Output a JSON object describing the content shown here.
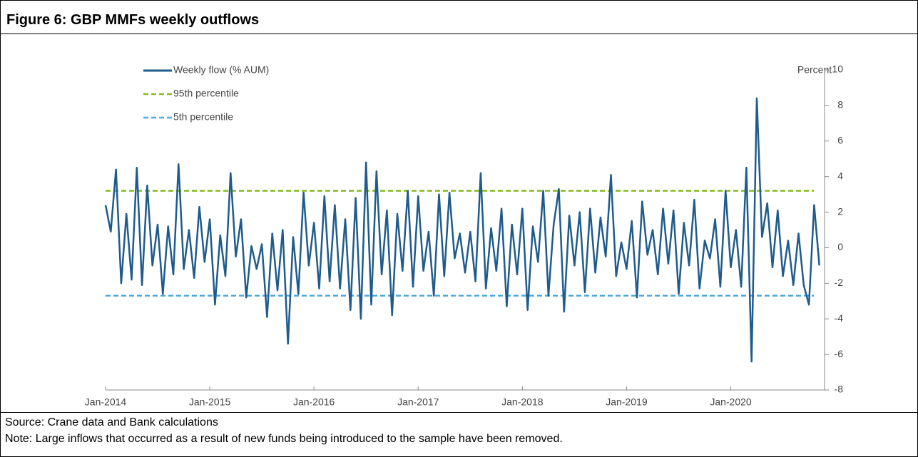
{
  "chart_data": {
    "type": "line",
    "title": "Figure 6: GBP MMFs weekly outflows",
    "y_label": "Percent",
    "source": "Source: Crane data and Bank calculations",
    "note": "Note: Large inflows that occurred as a result of new funds being introduced to the sample have been removed.",
    "xlim": [
      2014,
      2020.9
    ],
    "xticks": [
      {
        "value": 2014,
        "label": "Jan-2014"
      },
      {
        "value": 2015,
        "label": "Jan-2015"
      },
      {
        "value": 2016,
        "label": "Jan-2016"
      },
      {
        "value": 2017,
        "label": "Jan-2017"
      },
      {
        "value": 2018,
        "label": "Jan-2018"
      },
      {
        "value": 2019,
        "label": "Jan-2019"
      },
      {
        "value": 2020,
        "label": "Jan-2020"
      }
    ],
    "ylim": [
      -8,
      10
    ],
    "yticks": [
      -8,
      -6,
      -4,
      -2,
      0,
      2,
      4,
      6,
      8,
      10
    ],
    "x": [
      2014,
      2014.05,
      2014.1,
      2014.15,
      2014.2,
      2014.25,
      2014.3,
      2014.35,
      2014.4,
      2014.45,
      2014.5,
      2014.55,
      2014.6,
      2014.65,
      2014.7,
      2014.75,
      2014.8,
      2014.85,
      2014.9,
      2014.95,
      2015,
      2015.05,
      2015.1,
      2015.15,
      2015.2,
      2015.25,
      2015.3,
      2015.35,
      2015.4,
      2015.45,
      2015.5,
      2015.55,
      2015.6,
      2015.65,
      2015.7,
      2015.75,
      2015.8,
      2015.85,
      2015.9,
      2015.95,
      2016,
      2016.05,
      2016.1,
      2016.15,
      2016.2,
      2016.25,
      2016.3,
      2016.35,
      2016.4,
      2016.45,
      2016.5,
      2016.55,
      2016.6,
      2016.65,
      2016.7,
      2016.75,
      2016.8,
      2016.85,
      2016.9,
      2016.95,
      2017,
      2017.05,
      2017.1,
      2017.15,
      2017.2,
      2017.25,
      2017.3,
      2017.35,
      2017.4,
      2017.45,
      2017.5,
      2017.55,
      2017.6,
      2017.65,
      2017.7,
      2017.75,
      2017.8,
      2017.85,
      2017.9,
      2017.95,
      2018,
      2018.05,
      2018.1,
      2018.15,
      2018.2,
      2018.25,
      2018.3,
      2018.35,
      2018.4,
      2018.45,
      2018.5,
      2018.55,
      2018.6,
      2018.65,
      2018.7,
      2018.75,
      2018.8,
      2018.85,
      2018.9,
      2018.95,
      2019,
      2019.05,
      2019.1,
      2019.15,
      2019.2,
      2019.25,
      2019.3,
      2019.35,
      2019.4,
      2019.45,
      2019.5,
      2019.55,
      2019.6,
      2019.65,
      2019.7,
      2019.75,
      2019.8,
      2019.85,
      2019.9,
      2019.95,
      2020,
      2020.05,
      2020.1,
      2020.15,
      2020.2,
      2020.25,
      2020.3,
      2020.35,
      2020.4,
      2020.45,
      2020.5,
      2020.55,
      2020.6,
      2020.65,
      2020.7,
      2020.75,
      2020.8,
      2020.85
    ],
    "series": [
      {
        "name": "Weekly flow (% AUM)",
        "color": "#1f5b8c",
        "values": [
          2.4,
          0.9,
          4.4,
          -2.0,
          1.9,
          -1.8,
          4.5,
          -2.1,
          3.5,
          -1.0,
          1.3,
          -2.6,
          1.2,
          -1.5,
          4.7,
          -1.2,
          1.0,
          -1.7,
          2.3,
          -0.8,
          1.6,
          -3.2,
          0.7,
          -1.6,
          4.2,
          -0.5,
          1.6,
          -2.8,
          0.1,
          -1.2,
          0.2,
          -3.9,
          0.8,
          -2.4,
          1.0,
          -5.4,
          0.6,
          -2.6,
          3.1,
          -1.0,
          1.4,
          -2.3,
          2.9,
          -1.9,
          2.4,
          -2.3,
          1.6,
          -3.5,
          2.8,
          -4.0,
          4.8,
          -3.2,
          4.3,
          -1.5,
          2.1,
          -3.8,
          1.9,
          -1.3,
          3.2,
          -2.2,
          2.9,
          -1.3,
          0.9,
          -2.7,
          3.0,
          -1.6,
          3.1,
          -0.6,
          0.8,
          -1.4,
          0.9,
          -1.9,
          4.2,
          -2.3,
          1.1,
          -1.3,
          2.2,
          -3.3,
          1.3,
          -1.5,
          2.2,
          -3.5,
          1.2,
          -0.8,
          3.2,
          -2.7,
          1.3,
          3.3,
          -3.6,
          1.8,
          -1.0,
          2.0,
          -2.5,
          2.2,
          -1.4,
          1.7,
          -0.5,
          4.1,
          -1.6,
          0.3,
          -1.2,
          1.5,
          -2.8,
          2.6,
          -0.4,
          1.0,
          -1.5,
          2.2,
          -0.9,
          2.1,
          -2.6,
          1.4,
          -1.0,
          2.7,
          -2.3,
          0.4,
          -0.6,
          1.6,
          -2.2,
          3.2,
          -1.1,
          1.0,
          -2.2,
          4.5,
          -6.4,
          8.4,
          0.6,
          2.5,
          -1.1,
          2.1,
          -1.6,
          0.4,
          -2.1,
          0.8,
          -2.1,
          -3.2,
          2.4,
          -1.0
        ]
      }
    ],
    "reference_lines": [
      {
        "name": "95th percentile",
        "color": "#86bc25",
        "value": 3.2
      },
      {
        "name": "5th percentile",
        "color": "#4ea9de",
        "value": -2.7
      }
    ]
  }
}
